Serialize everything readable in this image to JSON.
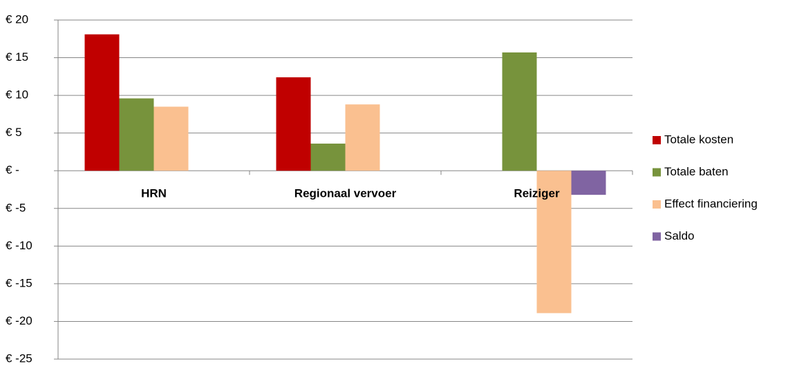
{
  "chart_data": {
    "type": "bar",
    "categories": [
      "HRN",
      "Regionaal vervoer",
      "Reiziger"
    ],
    "series": [
      {
        "name": "Totale kosten",
        "color": "#c00000",
        "values": [
          18.1,
          12.4,
          0
        ]
      },
      {
        "name": "Totale baten",
        "color": "#77933c",
        "values": [
          9.6,
          3.6,
          15.7
        ]
      },
      {
        "name": "Effect financiering",
        "color": "#fac090",
        "values": [
          8.5,
          8.8,
          -18.9
        ]
      },
      {
        "name": "Saldo",
        "color": "#8064a2",
        "values": [
          0,
          0,
          -3.2
        ]
      }
    ],
    "ylim": [
      -25,
      20
    ],
    "yticks": [
      {
        "value": -25,
        "label": "€ -25"
      },
      {
        "value": -20,
        "label": "€ -20"
      },
      {
        "value": -15,
        "label": "€ -15"
      },
      {
        "value": -10,
        "label": "€ -10"
      },
      {
        "value": -5,
        "label": "€ -5"
      },
      {
        "value": 0,
        "label": "€ -"
      },
      {
        "value": 5,
        "label": "€ 5"
      },
      {
        "value": 10,
        "label": "€ 10"
      },
      {
        "value": 15,
        "label": "€ 15"
      },
      {
        "value": 20,
        "label": "€ 20"
      }
    ],
    "grid": true,
    "legend": "right"
  }
}
